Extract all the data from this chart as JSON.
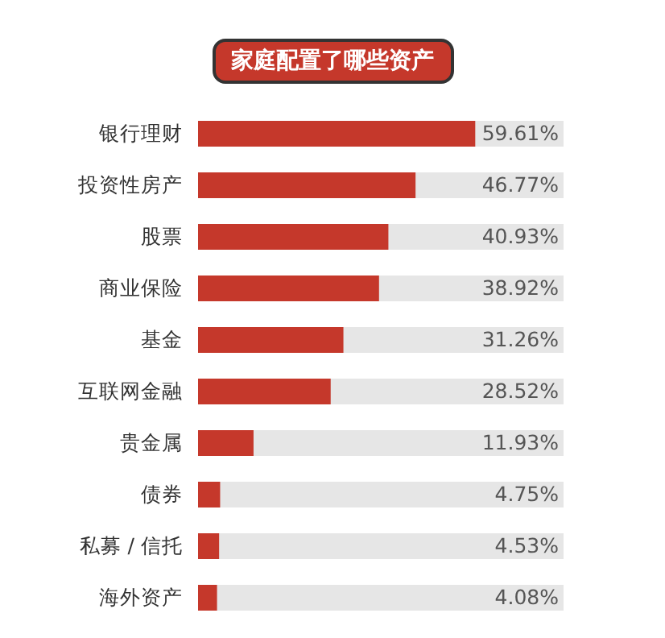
{
  "chart_data": {
    "type": "bar",
    "orientation": "horizontal",
    "title": "家庭配置了哪些资产",
    "categories": [
      "银行理财",
      "投资性房产",
      "股票",
      "商业保险",
      "基金",
      "互联网金融",
      "贵金属",
      "债券",
      "私募 / 信托",
      "海外资产"
    ],
    "values": [
      59.61,
      46.77,
      40.93,
      38.92,
      31.26,
      28.52,
      11.93,
      4.75,
      4.53,
      4.08
    ],
    "value_labels": [
      "59.61%",
      "46.77%",
      "40.93%",
      "38.92%",
      "31.26%",
      "28.52%",
      "11.93%",
      "4.75%",
      "4.53%",
      "4.08%"
    ],
    "color": "#c5382b",
    "xlim": [
      0,
      78.6
    ],
    "tick_labels": "y"
  }
}
